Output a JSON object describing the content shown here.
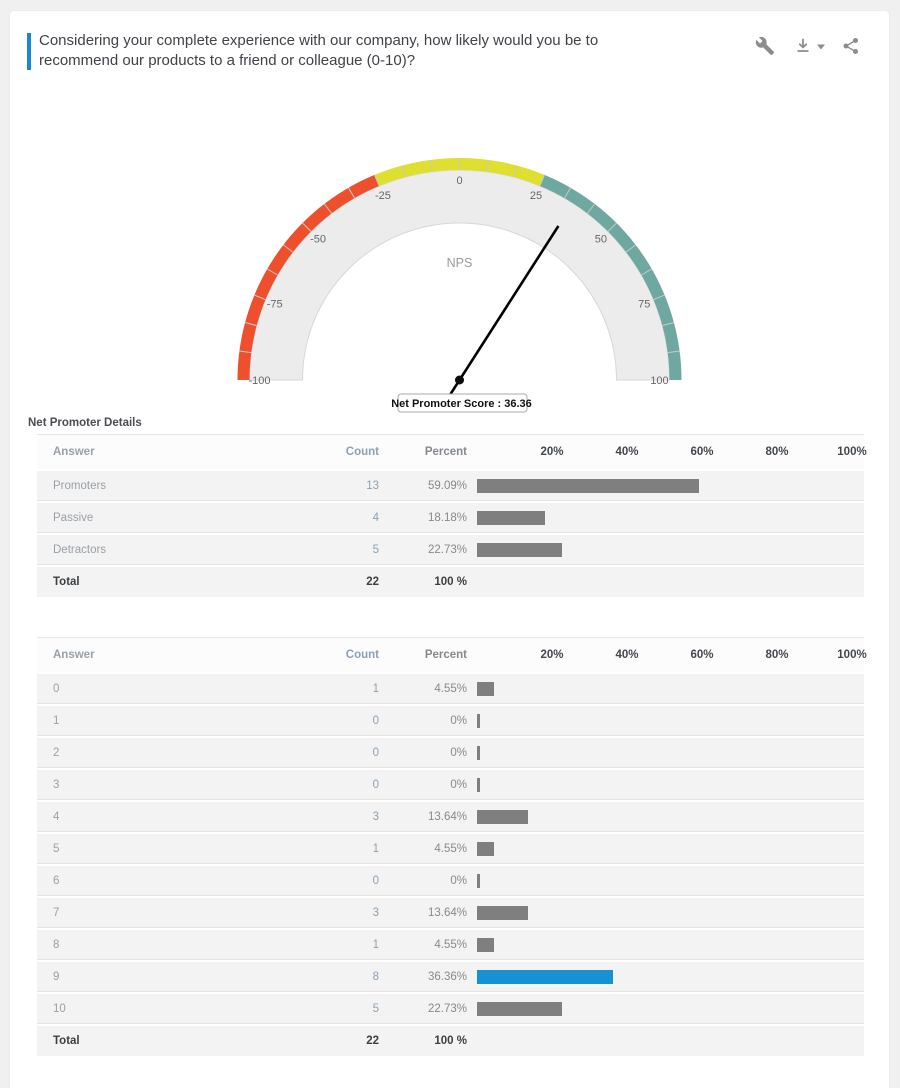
{
  "header": {
    "question": "Considering your complete experience with our company, how likely would you be to recommend our products to a friend or colleague (0-10)?",
    "tools": [
      {
        "icon": "wrench-icon"
      },
      {
        "icon": "download-icon"
      },
      {
        "icon": "caret-down-icon"
      },
      {
        "icon": "share-icon"
      }
    ]
  },
  "colors": {
    "accent": "#1a86d8",
    "bar_default": "#7f7f7f",
    "bar_highlight": "#1691d1",
    "gauge_red": "#ee4f2d",
    "gauge_yellow": "#dedf2e",
    "gauge_teal": "#6fa8a0",
    "gauge_fill": "#ececec"
  },
  "chart_data": [
    {
      "type": "gauge",
      "center_label": "NPS",
      "min": -100,
      "max": 100,
      "value": 36.36,
      "tooltip": "Net Promoter Score : 36.36",
      "tick_labels": [
        "-100",
        "-75",
        "-50",
        "-25",
        "0",
        "25",
        "50",
        "75",
        "100"
      ],
      "minor_segments": 24,
      "zones": [
        {
          "from": -100,
          "to": -25,
          "color": "#ee4f2d"
        },
        {
          "from": -25,
          "to": 25,
          "color": "#dedf2e"
        },
        {
          "from": 25,
          "to": 100,
          "color": "#6fa8a0"
        }
      ]
    },
    {
      "type": "table",
      "title": "Net Promoter Details",
      "columns": {
        "answer": "Answer",
        "count": "Count",
        "percent": "Percent"
      },
      "axis_ticks": [
        "20%",
        "40%",
        "60%",
        "80%",
        "100%"
      ],
      "rows": [
        {
          "answer": "Promoters",
          "count": "13",
          "percent": "59.09%",
          "value": 59.09
        },
        {
          "answer": "Passive",
          "count": "4",
          "percent": "18.18%",
          "value": 18.18
        },
        {
          "answer": "Detractors",
          "count": "5",
          "percent": "22.73%",
          "value": 22.73
        }
      ],
      "total_row": {
        "answer": "Total",
        "count": "22",
        "percent": "100 %"
      }
    },
    {
      "type": "table",
      "title": "",
      "columns": {
        "answer": "Answer",
        "count": "Count",
        "percent": "Percent"
      },
      "axis_ticks": [
        "20%",
        "40%",
        "60%",
        "80%",
        "100%"
      ],
      "rows": [
        {
          "answer": "0",
          "count": "1",
          "percent": "4.55%",
          "value": 4.55
        },
        {
          "answer": "1",
          "count": "0",
          "percent": "0%",
          "value": 0
        },
        {
          "answer": "2",
          "count": "0",
          "percent": "0%",
          "value": 0
        },
        {
          "answer": "3",
          "count": "0",
          "percent": "0%",
          "value": 0
        },
        {
          "answer": "4",
          "count": "3",
          "percent": "13.64%",
          "value": 13.64
        },
        {
          "answer": "5",
          "count": "1",
          "percent": "4.55%",
          "value": 4.55
        },
        {
          "answer": "6",
          "count": "0",
          "percent": "0%",
          "value": 0
        },
        {
          "answer": "7",
          "count": "3",
          "percent": "13.64%",
          "value": 13.64
        },
        {
          "answer": "8",
          "count": "1",
          "percent": "4.55%",
          "value": 4.55
        },
        {
          "answer": "9",
          "count": "8",
          "percent": "36.36%",
          "value": 36.36,
          "highlight": true
        },
        {
          "answer": "10",
          "count": "5",
          "percent": "22.73%",
          "value": 22.73
        }
      ],
      "total_row": {
        "answer": "Total",
        "count": "22",
        "percent": "100 %"
      }
    }
  ]
}
